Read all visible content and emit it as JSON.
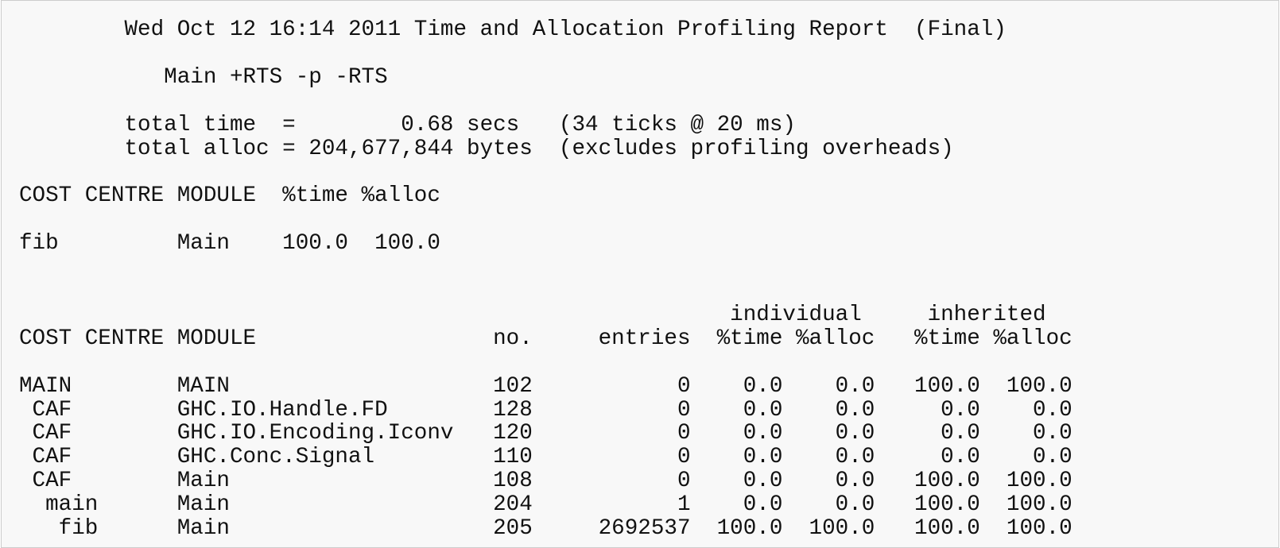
{
  "report": {
    "header": "        Wed Oct 12 16:14 2011 Time and Allocation Profiling Report  (Final)",
    "command": "           Main +RTS -p -RTS",
    "total_time": "        total time  =        0.68 secs   (34 ticks @ 20 ms)",
    "total_alloc": "        total alloc = 204,677,844 bytes  (excludes profiling overheads)",
    "summary_header": "COST CENTRE MODULE  %time %alloc",
    "summary_rows": [
      "fib         Main    100.0  100.0"
    ],
    "detail_group_header": "                                                      individual     inherited",
    "detail_header": "COST CENTRE MODULE                  no.     entries  %time %alloc   %time %alloc",
    "detail_rows": [
      "MAIN        MAIN                    102           0    0.0    0.0   100.0  100.0",
      " CAF        GHC.IO.Handle.FD        128           0    0.0    0.0     0.0    0.0",
      " CAF        GHC.IO.Encoding.Iconv   120           0    0.0    0.0     0.0    0.0",
      " CAF        GHC.Conc.Signal         110           0    0.0    0.0     0.0    0.0",
      " CAF        Main                    108           0    0.0    0.0   100.0  100.0",
      "  main      Main                    204           1    0.0    0.0   100.0  100.0",
      "   fib      Main                    205     2692537  100.0  100.0   100.0  100.0"
    ]
  }
}
